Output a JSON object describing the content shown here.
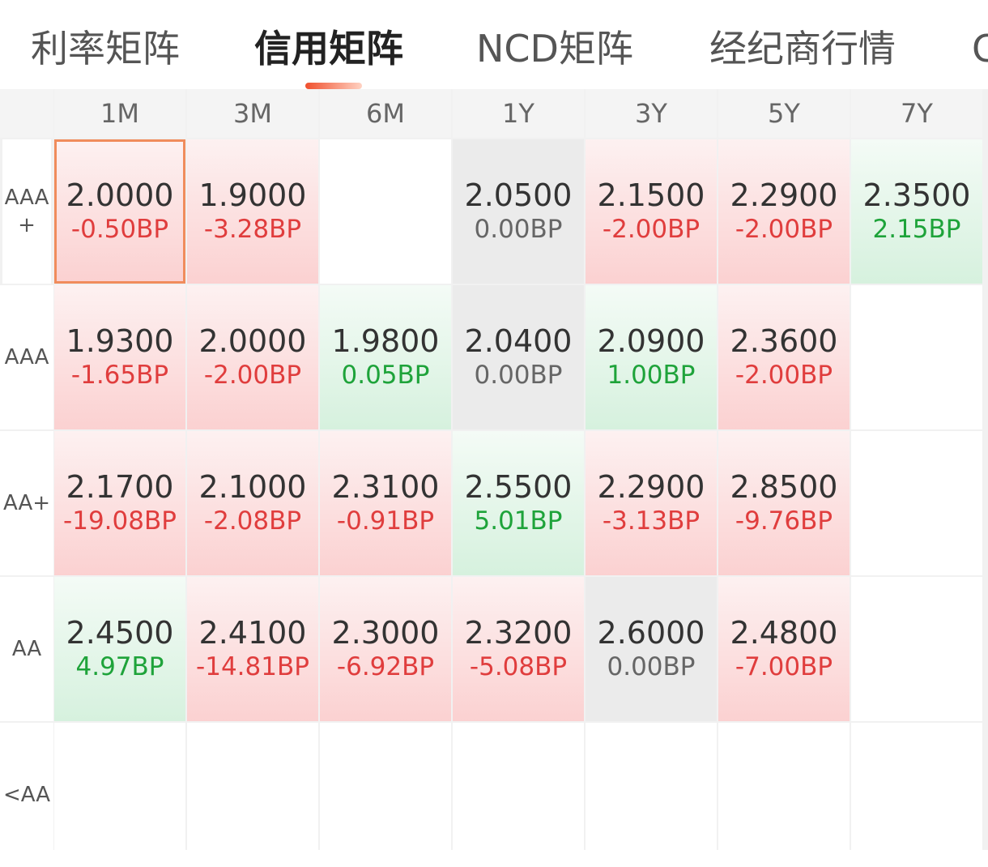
{
  "tabs": [
    {
      "label": "利率矩阵",
      "active": false
    },
    {
      "label": "信用矩阵",
      "active": true
    },
    {
      "label": "NCD矩阵",
      "active": false
    },
    {
      "label": "经纪商行情",
      "active": false
    },
    {
      "label": "C",
      "active": false
    }
  ],
  "columns": [
    "1M",
    "3M",
    "6M",
    "1Y",
    "3Y",
    "5Y",
    "7Y"
  ],
  "rows": [
    "AAA+",
    "AAA",
    "AA+",
    "AA",
    "<AA"
  ],
  "cells": [
    [
      {
        "value": "2.0000",
        "change": "-0.50BP",
        "trend": "red"
      },
      {
        "value": "1.9000",
        "change": "-3.28BP",
        "trend": "red"
      },
      {
        "value": "",
        "change": "",
        "trend": "empty"
      },
      {
        "value": "2.0500",
        "change": "0.00BP",
        "trend": "gray"
      },
      {
        "value": "2.1500",
        "change": "-2.00BP",
        "trend": "red"
      },
      {
        "value": "2.2900",
        "change": "-2.00BP",
        "trend": "red"
      },
      {
        "value": "2.3500",
        "change": "2.15BP",
        "trend": "green"
      }
    ],
    [
      {
        "value": "1.9300",
        "change": "-1.65BP",
        "trend": "red"
      },
      {
        "value": "2.0000",
        "change": "-2.00BP",
        "trend": "red"
      },
      {
        "value": "1.9800",
        "change": "0.05BP",
        "trend": "green"
      },
      {
        "value": "2.0400",
        "change": "0.00BP",
        "trend": "gray"
      },
      {
        "value": "2.0900",
        "change": "1.00BP",
        "trend": "green"
      },
      {
        "value": "2.3600",
        "change": "-2.00BP",
        "trend": "red"
      },
      {
        "value": "",
        "change": "",
        "trend": "empty"
      }
    ],
    [
      {
        "value": "2.1700",
        "change": "-19.08BP",
        "trend": "red"
      },
      {
        "value": "2.1000",
        "change": "-2.08BP",
        "trend": "red"
      },
      {
        "value": "2.3100",
        "change": "-0.91BP",
        "trend": "red"
      },
      {
        "value": "2.5500",
        "change": "5.01BP",
        "trend": "green"
      },
      {
        "value": "2.2900",
        "change": "-3.13BP",
        "trend": "red"
      },
      {
        "value": "2.8500",
        "change": "-9.76BP",
        "trend": "red"
      },
      {
        "value": "",
        "change": "",
        "trend": "empty"
      }
    ],
    [
      {
        "value": "2.4500",
        "change": "4.97BP",
        "trend": "green"
      },
      {
        "value": "2.4100",
        "change": "-14.81BP",
        "trend": "red"
      },
      {
        "value": "2.3000",
        "change": "-6.92BP",
        "trend": "red"
      },
      {
        "value": "2.3200",
        "change": "-5.08BP",
        "trend": "red"
      },
      {
        "value": "2.6000",
        "change": "0.00BP",
        "trend": "gray"
      },
      {
        "value": "2.4800",
        "change": "-7.00BP",
        "trend": "red"
      },
      {
        "value": "",
        "change": "",
        "trend": "empty"
      }
    ],
    [
      {
        "value": "",
        "change": "",
        "trend": "empty"
      },
      {
        "value": "",
        "change": "",
        "trend": "empty"
      },
      {
        "value": "",
        "change": "",
        "trend": "empty"
      },
      {
        "value": "",
        "change": "",
        "trend": "empty"
      },
      {
        "value": "",
        "change": "",
        "trend": "empty"
      },
      {
        "value": "",
        "change": "",
        "trend": "empty"
      },
      {
        "value": "",
        "change": "",
        "trend": "empty"
      }
    ]
  ],
  "selected": {
    "row": 0,
    "col": 0
  },
  "colors": {
    "accent": "#f0502e",
    "up": "#1ea33a",
    "down": "#e03d3d",
    "flat": "#666666"
  }
}
